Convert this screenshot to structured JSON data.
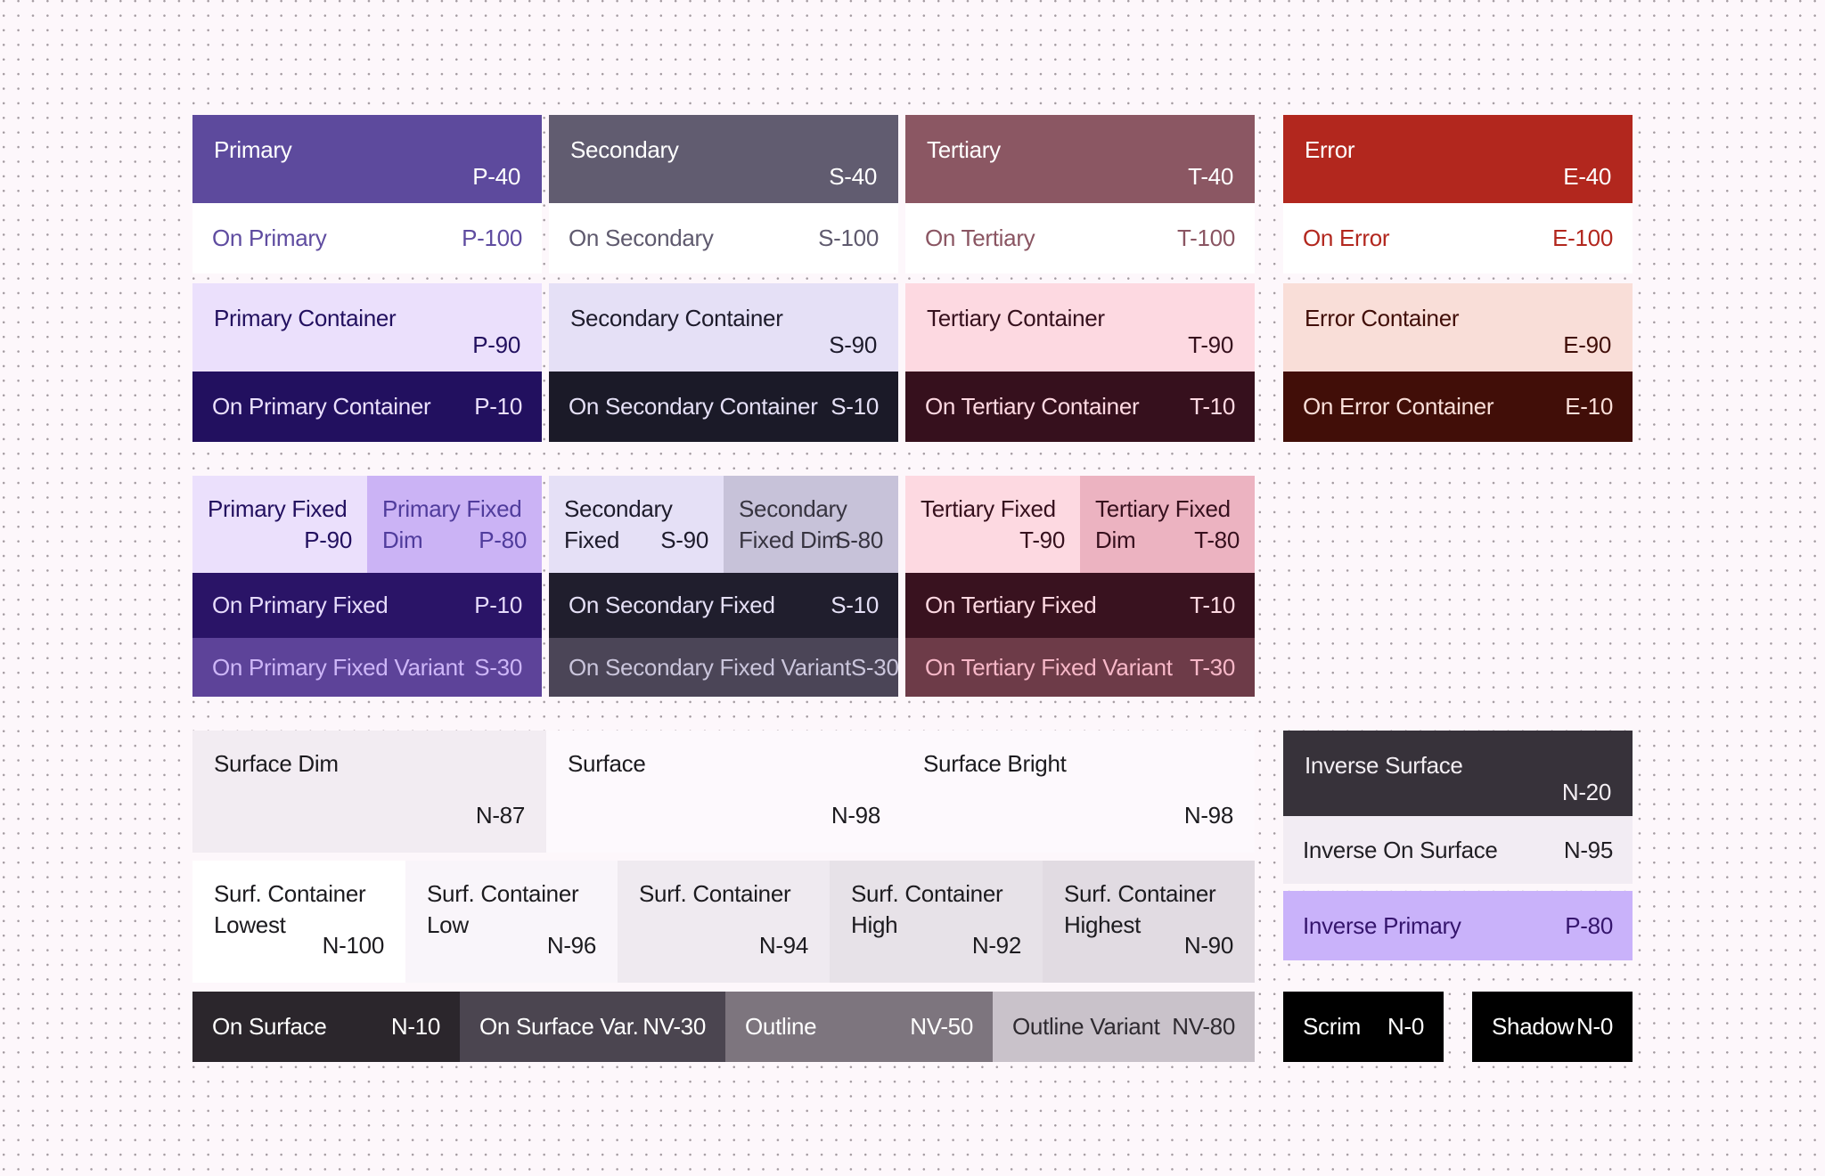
{
  "canvas": {
    "bg": "#FDF7FB",
    "dot_color": "#A39AA0"
  },
  "palette": {
    "primary": {
      "main": {
        "label": "Primary",
        "value": "P-40",
        "bg": "#5D4A9D",
        "fg": "#FFFFFF"
      },
      "on": {
        "label": "On Primary",
        "value": "P-100",
        "bg": "#FFFFFF",
        "fg": "#5F4CA0"
      },
      "container": {
        "label": "Primary Container",
        "value": "P-90",
        "bg": "#EBE0FC",
        "fg": "#22105F"
      },
      "on_container": {
        "label": "On Primary Container",
        "value": "P-10",
        "bg": "#22105F",
        "fg": "#EBE0FC"
      },
      "fixed": {
        "label": "Primary Fixed",
        "value": "P-90",
        "bg": "#EBE0FC",
        "fg": "#22105F"
      },
      "fixed_dim": {
        "label": "Primary Fixed Dim",
        "value": "P-80",
        "bg": "#CBB3F5",
        "fg": "#503C9C"
      },
      "on_fixed": {
        "label": "On Primary Fixed",
        "value": "P-10",
        "bg": "#2A1467",
        "fg": "#E6DBFB"
      },
      "on_fixed_variant": {
        "label": "On Primary Fixed Variant",
        "value": "S-30",
        "bg": "#5D4399",
        "fg": "#CDB6F7"
      }
    },
    "secondary": {
      "main": {
        "label": "Secondary",
        "value": "S-40",
        "bg": "#615C70",
        "fg": "#FFFFFF"
      },
      "on": {
        "label": "On Secondary",
        "value": "S-100",
        "bg": "#FFFFFF",
        "fg": "#5F5A6E"
      },
      "container": {
        "label": "Secondary Container",
        "value": "S-90",
        "bg": "#E5E0F6",
        "fg": "#1D1B2B"
      },
      "on_container": {
        "label": "On Secondary Container",
        "value": "S-10",
        "bg": "#1B1A28",
        "fg": "#E5E0F6"
      },
      "fixed": {
        "label": "Secondary Fixed",
        "value": "S-90",
        "bg": "#E5E0F6",
        "fg": "#1D1B2B"
      },
      "fixed_dim": {
        "label": "Secondary Fixed Dim",
        "value": "S-80",
        "bg": "#C7C2D9",
        "fg": "#373440"
      },
      "on_fixed": {
        "label": "On Secondary Fixed",
        "value": "S-10",
        "bg": "#201E2D",
        "fg": "#E5E0F6"
      },
      "on_fixed_variant": {
        "label": "On Secondary Fixed Variant",
        "value": "S-30",
        "bg": "#4B4557",
        "fg": "#CAC5DB"
      }
    },
    "tertiary": {
      "main": {
        "label": "Tertiary",
        "value": "T-40",
        "bg": "#8B5763",
        "fg": "#FFFFFF"
      },
      "on": {
        "label": "On Tertiary",
        "value": "T-100",
        "bg": "#FFFFFF",
        "fg": "#8A5562"
      },
      "container": {
        "label": "Tertiary Container",
        "value": "T-90",
        "bg": "#FDD9E1",
        "fg": "#36101D"
      },
      "on_container": {
        "label": "On Tertiary Container",
        "value": "T-10",
        "bg": "#36101D",
        "fg": "#FFD9E2"
      },
      "fixed": {
        "label": "Tertiary Fixed",
        "value": "T-90",
        "bg": "#FDD9E1",
        "fg": "#36101D"
      },
      "fixed_dim": {
        "label": "Tertiary Fixed Dim",
        "value": "T-80",
        "bg": "#ECB3C1",
        "fg": "#36101D"
      },
      "on_fixed": {
        "label": "On Tertiary Fixed",
        "value": "T-10",
        "bg": "#39121F",
        "fg": "#FFD9E2"
      },
      "on_fixed_variant": {
        "label": "On Tertiary Fixed Variant",
        "value": "T-30",
        "bg": "#6D3B48",
        "fg": "#F7B8C8"
      }
    },
    "error": {
      "main": {
        "label": "Error",
        "value": "E-40",
        "bg": "#B2271E",
        "fg": "#FFFFFF"
      },
      "on": {
        "label": "On Error",
        "value": "E-100",
        "bg": "#FFFFFF",
        "fg": "#B2271E"
      },
      "container": {
        "label": "Error Container",
        "value": "E-90",
        "bg": "#F9DED8",
        "fg": "#410E08"
      },
      "on_container": {
        "label": "On Error Container",
        "value": "E-10",
        "bg": "#410E08",
        "fg": "#F9DED8"
      }
    }
  },
  "surfaces": {
    "dim": {
      "label": "Surface Dim",
      "value": "N-87",
      "bg": "#F2ECF2",
      "fg": "#1C1B1F"
    },
    "surface": {
      "label": "Surface",
      "value": "N-98",
      "bg": "#FDF9FD",
      "fg": "#1C1B1F"
    },
    "bright": {
      "label": "Surface Bright",
      "value": "N-98",
      "bg": "#FDF9FD",
      "fg": "#1C1B1F"
    },
    "containers": [
      {
        "label": "Surf. Container Lowest",
        "value": "N-100",
        "bg": "#FFFFFF",
        "fg": "#1C1B1F"
      },
      {
        "label": "Surf. Container Low",
        "value": "N-96",
        "bg": "#F9F5FA",
        "fg": "#1C1B1F"
      },
      {
        "label": "Surf. Container",
        "value": "N-94",
        "bg": "#EFEAF0",
        "fg": "#1C1B1F"
      },
      {
        "label": "Surf. Container High",
        "value": "N-92",
        "bg": "#E7E2E8",
        "fg": "#1C1B1F"
      },
      {
        "label": "Surf. Container Highest",
        "value": "N-90",
        "bg": "#E1DBE2",
        "fg": "#1C1B1F"
      }
    ],
    "on_surface": {
      "label": "On Surface",
      "value": "N-10",
      "bg": "#2B262C",
      "fg": "#FFFFFF"
    },
    "on_surface_variant": {
      "label": "On Surface Var.",
      "value": "NV-30",
      "bg": "#4B4550",
      "fg": "#FFFFFF"
    },
    "outline": {
      "label": "Outline",
      "value": "NV-50",
      "bg": "#7D757E",
      "fg": "#FFFFFF"
    },
    "outline_variant": {
      "label": "Outline Variant",
      "value": "NV-80",
      "bg": "#C9C2CA",
      "fg": "#2E2A30"
    }
  },
  "inverse": {
    "surface": {
      "label": "Inverse Surface",
      "value": "N-20",
      "bg": "#37323A",
      "fg": "#F3EEF3"
    },
    "on_surface": {
      "label": "Inverse On Surface",
      "value": "N-95",
      "bg": "#F2ECF3",
      "fg": "#211F24"
    },
    "primary": {
      "label": "Inverse Primary",
      "value": "P-80",
      "bg": "#C9B2FA",
      "fg": "#35156D"
    }
  },
  "scrim": {
    "label": "Scrim",
    "value": "N-0",
    "bg": "#000000",
    "fg": "#FFFFFF"
  },
  "shadow": {
    "label": "Shadow",
    "value": "N-0",
    "bg": "#000000",
    "fg": "#FFFFFF"
  }
}
